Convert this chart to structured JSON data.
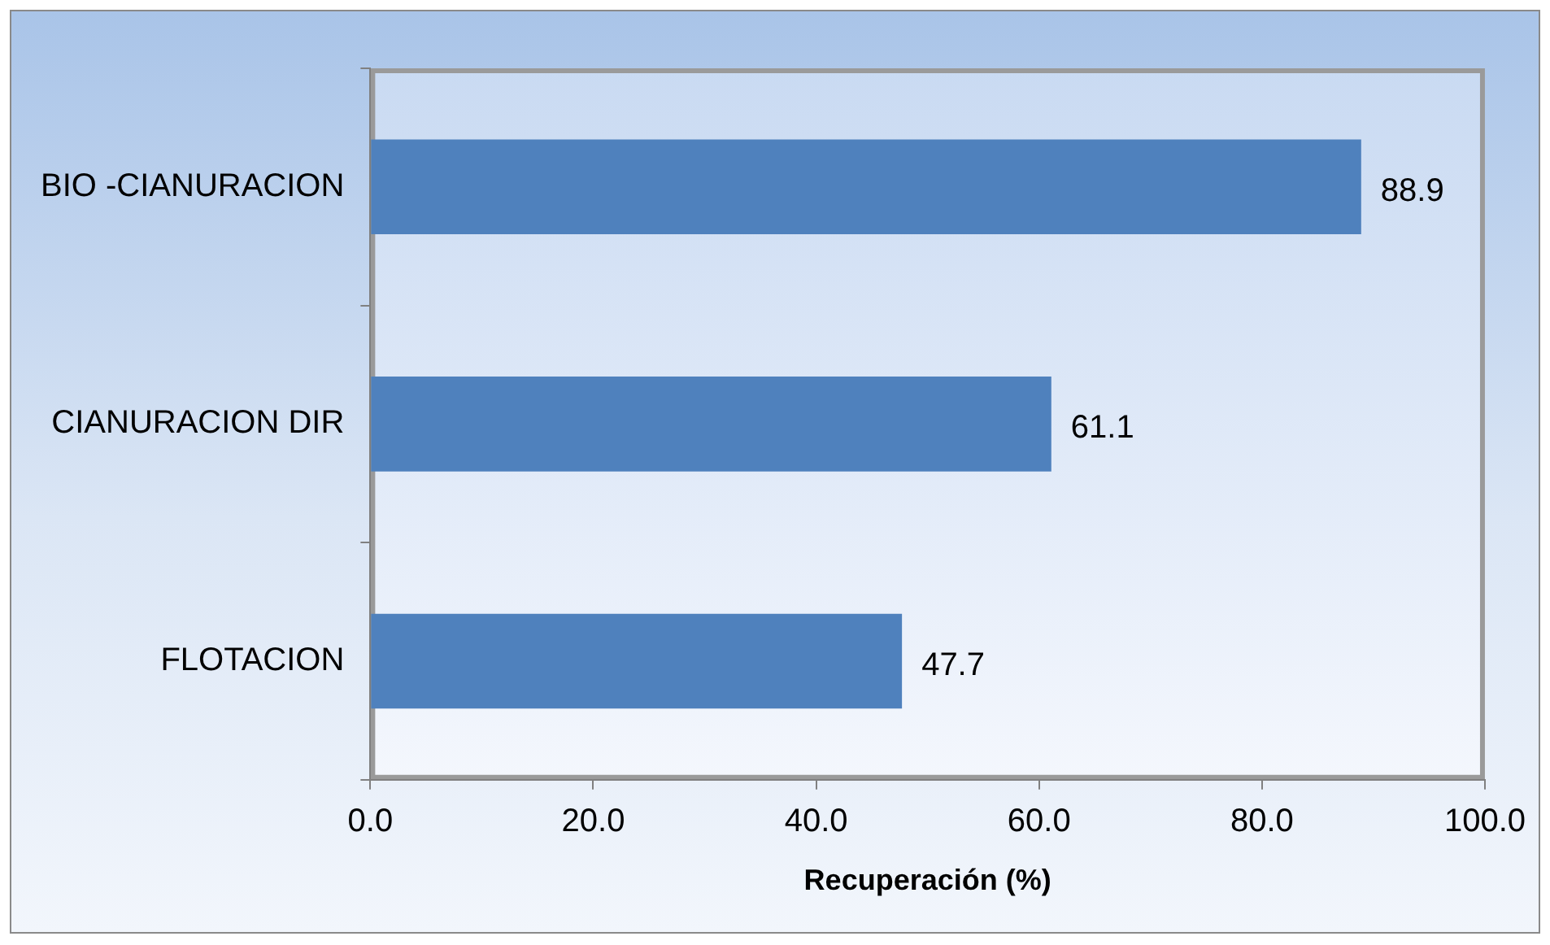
{
  "chart_data": {
    "type": "bar",
    "orientation": "horizontal",
    "xlabel": "Recuperación (%)",
    "categories": [
      "BIO -CIANURACION",
      "CIANURACION DIR",
      "FLOTACION"
    ],
    "values": [
      88.9,
      61.1,
      47.7
    ],
    "color": "#4f81bd",
    "xlim": [
      0,
      100
    ],
    "xticks": [
      {
        "value": 0,
        "label": "0.0"
      },
      {
        "value": 20,
        "label": "20.0"
      },
      {
        "value": 40,
        "label": "40.0"
      },
      {
        "value": 60,
        "label": "60.0"
      },
      {
        "value": 80,
        "label": "80.0"
      },
      {
        "value": 100,
        "label": "100.0"
      }
    ],
    "grid": false,
    "legend": false,
    "data_labels": true
  }
}
